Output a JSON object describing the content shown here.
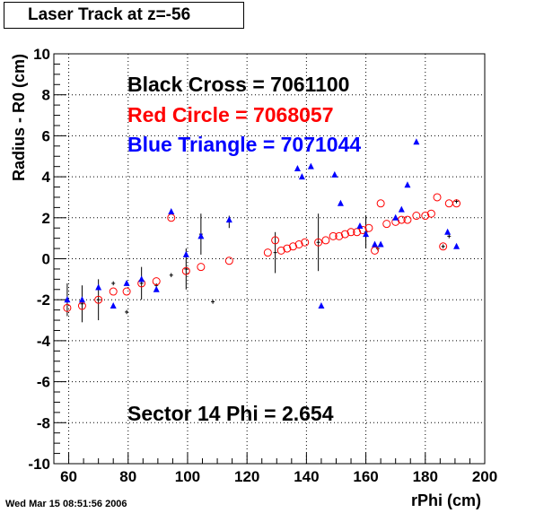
{
  "title": "Laser Track at z=-56",
  "footer_date": "Wed Mar 15 08:51:56 2006",
  "annotations": {
    "black": "Black Cross  = 7061100",
    "red": "Red Circle = 7068057",
    "blue": "Blue Triangle = 7071044",
    "sector": "Sector 14 Phi = 2.654"
  },
  "colors": {
    "black": "#000000",
    "red": "#ff0000",
    "blue": "#0000ff"
  },
  "chart_data": {
    "type": "scatter",
    "title": "Laser Track at z=-56",
    "xlabel": "rPhi (cm)",
    "ylabel": "Radius - R0 (cm)",
    "xlim": [
      55,
      200
    ],
    "ylim": [
      -10,
      10
    ],
    "grid": true,
    "x_ticks": [
      "60",
      "80",
      "100",
      "120",
      "140",
      "160",
      "180",
      "200"
    ],
    "y_ticks": [
      "-10",
      "-8",
      "-6",
      "-4",
      "-2",
      "0",
      "2",
      "4",
      "6",
      "8",
      "10"
    ],
    "series": [
      {
        "name": "Black Cross",
        "marker": "cross-errorbar",
        "points": [
          {
            "x": 59.5,
            "y": -2.0,
            "err": 0.8
          },
          {
            "x": 64.5,
            "y": -2.2,
            "err": 0.9
          },
          {
            "x": 70,
            "y": -2.0,
            "err": 1.0
          },
          {
            "x": 75,
            "y": -1.2,
            "err": 0.1
          },
          {
            "x": 79.5,
            "y": -2.6,
            "err": 0.1
          },
          {
            "x": 84.5,
            "y": -1.2,
            "err": 0.8
          },
          {
            "x": 89.5,
            "y": -1.3,
            "err": 0.1
          },
          {
            "x": 94.5,
            "y": -0.8,
            "err": 0.1
          },
          {
            "x": 99.5,
            "y": -0.5,
            "err": 1.0
          },
          {
            "x": 104.5,
            "y": 1.2,
            "err": 1.0
          },
          {
            "x": 108.5,
            "y": -2.1,
            "err": 0.1
          },
          {
            "x": 114,
            "y": 1.8,
            "err": 0.3
          },
          {
            "x": 129.5,
            "y": 0.3,
            "err": 1.0
          },
          {
            "x": 144,
            "y": 0.8,
            "err": 1.4
          },
          {
            "x": 160,
            "y": 1.3,
            "err": 0.8
          },
          {
            "x": 164,
            "y": 0.5,
            "err": 0.1
          },
          {
            "x": 186,
            "y": 0.6,
            "err": 0.1
          },
          {
            "x": 188,
            "y": 1.1,
            "err": 0.1
          },
          {
            "x": 190.5,
            "y": 2.8,
            "err": 0.1
          }
        ]
      },
      {
        "name": "Red Circle",
        "marker": "circle",
        "points": [
          {
            "x": 59.5,
            "y": -2.4
          },
          {
            "x": 64.5,
            "y": -2.3
          },
          {
            "x": 70,
            "y": -2.0
          },
          {
            "x": 75,
            "y": -1.6
          },
          {
            "x": 79.5,
            "y": -1.6
          },
          {
            "x": 84.5,
            "y": -1.2
          },
          {
            "x": 89.5,
            "y": -1.1
          },
          {
            "x": 94.5,
            "y": 2.0
          },
          {
            "x": 99.5,
            "y": -0.6
          },
          {
            "x": 104.5,
            "y": -0.4
          },
          {
            "x": 114,
            "y": -0.1
          },
          {
            "x": 127,
            "y": 0.3
          },
          {
            "x": 129.5,
            "y": 0.9
          },
          {
            "x": 131.5,
            "y": 0.4
          },
          {
            "x": 133.5,
            "y": 0.5
          },
          {
            "x": 135.5,
            "y": 0.6
          },
          {
            "x": 137.5,
            "y": 0.7
          },
          {
            "x": 139.5,
            "y": 0.8
          },
          {
            "x": 144,
            "y": 0.8
          },
          {
            "x": 146.5,
            "y": 0.9
          },
          {
            "x": 149,
            "y": 1.1
          },
          {
            "x": 151,
            "y": 1.1
          },
          {
            "x": 153,
            "y": 1.2
          },
          {
            "x": 155,
            "y": 1.3
          },
          {
            "x": 157,
            "y": 1.3
          },
          {
            "x": 159,
            "y": 1.4
          },
          {
            "x": 161,
            "y": 1.5
          },
          {
            "x": 163,
            "y": 0.4
          },
          {
            "x": 165,
            "y": 2.7
          },
          {
            "x": 167,
            "y": 1.7
          },
          {
            "x": 170,
            "y": 1.8
          },
          {
            "x": 172,
            "y": 1.9
          },
          {
            "x": 174,
            "y": 1.9
          },
          {
            "x": 177,
            "y": 2.1
          },
          {
            "x": 180,
            "y": 2.1
          },
          {
            "x": 182,
            "y": 2.2
          },
          {
            "x": 184,
            "y": 3.0
          },
          {
            "x": 186,
            "y": 0.6
          },
          {
            "x": 188,
            "y": 2.7
          },
          {
            "x": 190.5,
            "y": 2.7
          }
        ]
      },
      {
        "name": "Blue Triangle",
        "marker": "triangle",
        "points": [
          {
            "x": 59.5,
            "y": -2.0
          },
          {
            "x": 64.5,
            "y": -2.0
          },
          {
            "x": 70,
            "y": -1.4
          },
          {
            "x": 75,
            "y": -2.3
          },
          {
            "x": 79.5,
            "y": -1.2
          },
          {
            "x": 84.5,
            "y": -1.0
          },
          {
            "x": 89.5,
            "y": -1.5
          },
          {
            "x": 94.5,
            "y": 2.3
          },
          {
            "x": 99.5,
            "y": 0.2
          },
          {
            "x": 104.5,
            "y": 1.1
          },
          {
            "x": 114,
            "y": 1.9
          },
          {
            "x": 137,
            "y": 4.4
          },
          {
            "x": 138.5,
            "y": 4.0
          },
          {
            "x": 141.5,
            "y": 4.5
          },
          {
            "x": 145,
            "y": -2.3
          },
          {
            "x": 149.5,
            "y": 4.1
          },
          {
            "x": 151.5,
            "y": 2.7
          },
          {
            "x": 158,
            "y": 1.6
          },
          {
            "x": 160,
            "y": 1.2
          },
          {
            "x": 163,
            "y": 0.7
          },
          {
            "x": 165,
            "y": 0.7
          },
          {
            "x": 170,
            "y": 2.0
          },
          {
            "x": 172,
            "y": 2.4
          },
          {
            "x": 174,
            "y": 3.6
          },
          {
            "x": 177,
            "y": 5.7
          },
          {
            "x": 187.5,
            "y": 1.3
          },
          {
            "x": 190.5,
            "y": 0.6
          }
        ]
      }
    ]
  }
}
